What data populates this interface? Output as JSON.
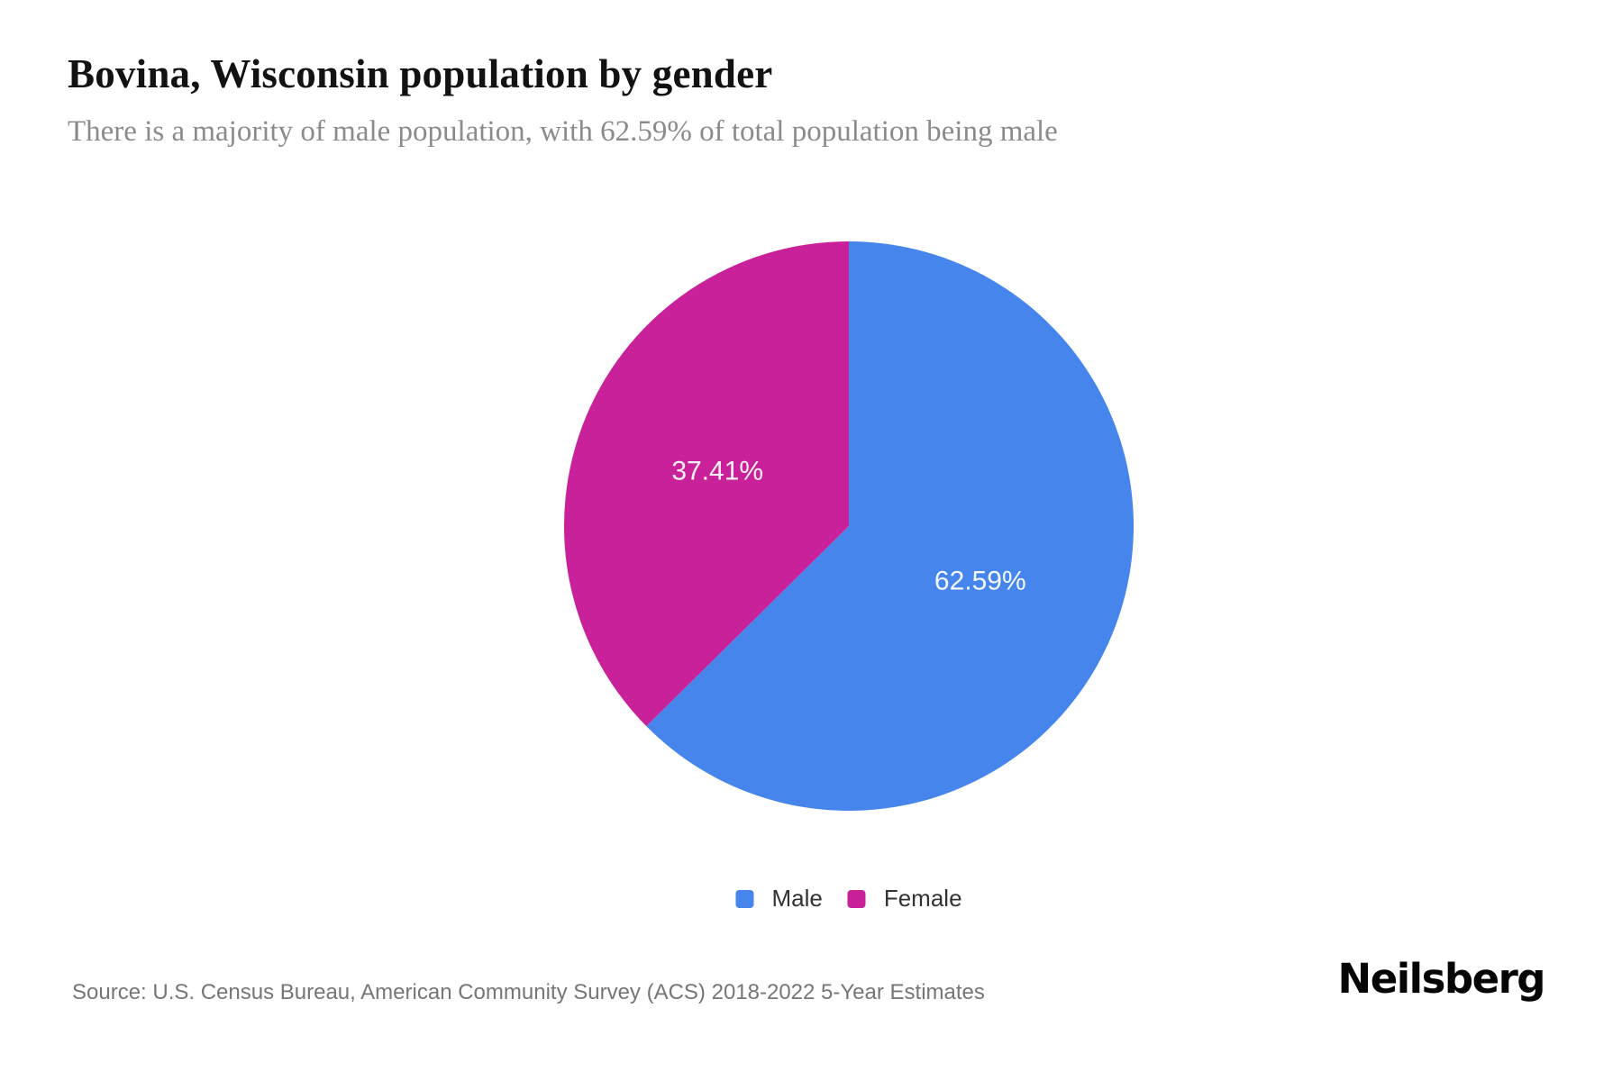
{
  "header": {
    "title": "Bovina, Wisconsin population by gender",
    "subtitle": "There is a majority of male population, with 62.59% of total population being male"
  },
  "chart_data": {
    "type": "pie",
    "title": "Bovina, Wisconsin population by gender",
    "subtitle": "There is a majority of male population, with 62.59% of total population being male",
    "categories": [
      "Male",
      "Female"
    ],
    "values": [
      62.59,
      37.41
    ],
    "slice_labels": [
      "62.59%",
      "37.41%"
    ],
    "colors": [
      "#4585EC",
      "#C9219A"
    ],
    "start_angle": "top",
    "direction": "clockwise",
    "label_position": "inside",
    "legend_position": "bottom"
  },
  "footer": {
    "source": "Source: U.S. Census Bureau, American Community Survey (ACS) 2018-2022 5-Year Estimates",
    "brand": "Neilsberg"
  }
}
